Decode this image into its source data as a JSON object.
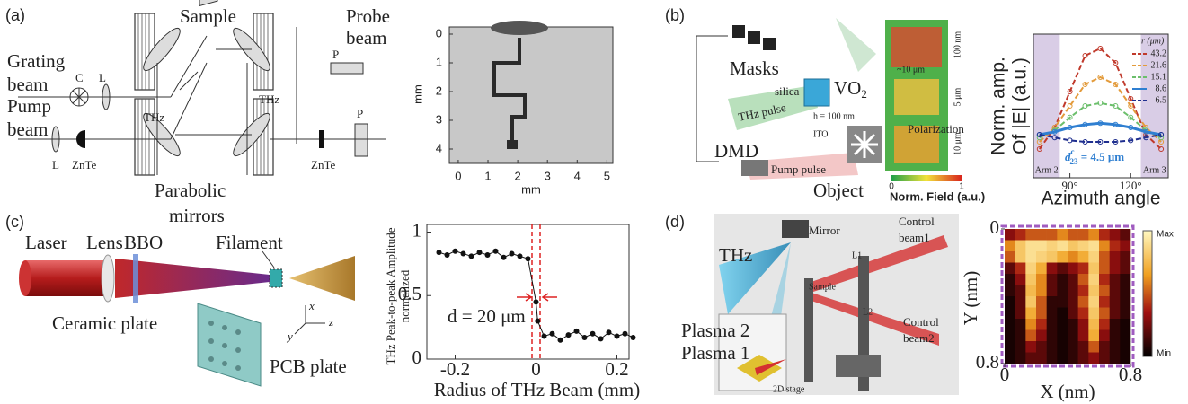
{
  "panel_a": {
    "label": "(a)",
    "sample": "Sample",
    "probe_beam": [
      "Probe",
      "beam"
    ],
    "grating_beam": [
      "Grating",
      "beam"
    ],
    "c": "C",
    "l1": "L",
    "pump_beam": [
      "Pump",
      "beam"
    ],
    "thz1": "THz",
    "thz2": "THz",
    "p1": "P",
    "p2": "P",
    "l2": "L",
    "znte1": "ZnTe",
    "znte2": "ZnTe",
    "parabolic_mirrors": [
      "Parabolic",
      "mirrors"
    ],
    "image": {
      "xlabel": "mm",
      "ylabel": "mm",
      "xlim": [
        -0.3,
        5.2
      ],
      "ylim": [
        -0.25,
        4.5
      ],
      "xticks": [
        0,
        1,
        2,
        3,
        4,
        5
      ],
      "yticks": [
        0,
        1,
        2,
        3,
        4
      ]
    }
  },
  "panel_b": {
    "label": "(b)",
    "masks": "Masks",
    "silica": "silica",
    "vo2": {
      "base": "VO",
      "sub": "2"
    },
    "thz_pulse": "THz pulse",
    "dmd": "DMD",
    "pump_pulse": "Pump pulse",
    "object": "Object",
    "h": "h = 100 nm",
    "ito": "ITO",
    "polarization": "Polarization",
    "map_scale": "~10 μm",
    "map_labels": [
      "100 nm",
      "5 μm",
      "10 μm"
    ],
    "field_colorbar": {
      "label": "Norm. Field (a.u.)",
      "ticks": [
        0,
        1
      ]
    },
    "chart": {
      "type": "line",
      "xlabel": "Azimuth angle",
      "ylabel": [
        "Norm. amp.",
        "Of |E| (a.u.)"
      ],
      "xlim": [
        72,
        138.5
      ],
      "ylim": [
        0,
        1
      ],
      "xticks": [
        {
          "value": 90,
          "label": "90°"
        },
        {
          "value": 120,
          "label": "120°"
        }
      ],
      "shaded": [
        {
          "range": [
            72,
            85
          ],
          "label": "Arm 2"
        },
        {
          "range": [
            125,
            138.5
          ],
          "label": "Arm 3"
        }
      ],
      "annotation": {
        "text": "d",
        "sup": "c",
        "sub": "23",
        "rest": " = 4.5 μm"
      },
      "legend_title": "r (μm)",
      "x": [
        75,
        82.5,
        90,
        97.5,
        105,
        112.5,
        120,
        127.5,
        135
      ],
      "series": [
        {
          "name": "43.2",
          "color": "#c0392b",
          "style": "dashed",
          "values": [
            0.2,
            0.35,
            0.6,
            0.85,
            0.9,
            0.8,
            0.55,
            0.3,
            0.2
          ]
        },
        {
          "name": "21.6",
          "color": "#e39b3b",
          "style": "dashed",
          "values": [
            0.25,
            0.35,
            0.5,
            0.65,
            0.7,
            0.65,
            0.5,
            0.35,
            0.25
          ]
        },
        {
          "name": "15.1",
          "color": "#6cbf6c",
          "style": "dashed",
          "values": [
            0.28,
            0.33,
            0.42,
            0.5,
            0.52,
            0.5,
            0.42,
            0.33,
            0.28
          ]
        },
        {
          "name": "8.6",
          "color": "#2f7fd1",
          "style": "solid",
          "values": [
            0.3,
            0.32,
            0.35,
            0.37,
            0.38,
            0.37,
            0.35,
            0.32,
            0.3
          ]
        },
        {
          "name": "6.5",
          "color": "#1f2f8f",
          "style": "dashed",
          "values": [
            0.3,
            0.28,
            0.26,
            0.25,
            0.25,
            0.25,
            0.26,
            0.28,
            0.3
          ]
        }
      ]
    }
  },
  "panel_c": {
    "label": "(c)",
    "laser": "Laser",
    "lens": "Lens",
    "bbo": "BBO",
    "filament": "Filament",
    "ceramic_plate": "Ceramic plate",
    "pcb_plate": "PCB plate",
    "axis_x": "x",
    "axis_y": "y",
    "axis_z": "z",
    "chart": {
      "type": "scatter",
      "xlabel": "Radius of THz Beam (mm)",
      "ylabel": [
        "THz Peak-to-peak Amplitude",
        "normalized"
      ],
      "xlim": [
        -0.27,
        0.23
      ],
      "ylim": [
        0,
        1.06
      ],
      "xticks": [
        -0.2,
        0,
        0.2
      ],
      "yticks": [
        0,
        0.5,
        1
      ],
      "dashed_x": [
        -0.01,
        0.01
      ],
      "annotation": "d = 20 μm",
      "color": "#111111",
      "x": [
        -0.24,
        -0.22,
        -0.2,
        -0.18,
        -0.16,
        -0.14,
        -0.12,
        -0.1,
        -0.08,
        -0.06,
        -0.04,
        -0.02,
        0,
        0.004,
        0.02,
        0.04,
        0.06,
        0.08,
        0.1,
        0.12,
        0.14,
        0.16,
        0.18,
        0.2,
        0.22,
        0.24
      ],
      "values": [
        0.84,
        0.82,
        0.85,
        0.83,
        0.81,
        0.84,
        0.82,
        0.85,
        0.8,
        0.83,
        0.81,
        0.79,
        0.45,
        0.3,
        0.18,
        0.2,
        0.15,
        0.19,
        0.22,
        0.17,
        0.2,
        0.16,
        0.21,
        0.18,
        0.2,
        0.17
      ]
    }
  },
  "panel_d": {
    "label": "(d)",
    "mirror": "Mirror",
    "control_beam1": [
      "Control",
      "beam1"
    ],
    "thz": "THz",
    "sample": "Sample",
    "control_beam2": [
      "Control",
      "beam2"
    ],
    "plasma2": "Plasma 2",
    "plasma1": "Plasma 1",
    "stage": "2D stage",
    "l1": "L1",
    "l2": "L2",
    "heatmap": {
      "type": "heatmap",
      "xlabel": "X (nm)",
      "ylabel": "Y (nm)",
      "xlim": [
        0,
        0.8
      ],
      "ylim": [
        0,
        0.8
      ],
      "xticks": [
        0,
        0.8
      ],
      "yticks": [
        0,
        0.8
      ],
      "colorbar": [
        "Max",
        "Min"
      ],
      "values": [
        [
          0.3,
          0.4,
          0.5,
          0.5,
          0.5,
          0.6,
          0.5,
          0.5,
          0.6,
          0.4,
          0.3,
          0.2
        ],
        [
          0.6,
          0.8,
          0.9,
          0.9,
          0.85,
          0.9,
          0.8,
          0.85,
          0.9,
          0.6,
          0.4,
          0.3
        ],
        [
          0.5,
          0.8,
          0.9,
          0.85,
          0.8,
          0.7,
          0.6,
          0.7,
          0.85,
          0.5,
          0.3,
          0.2
        ],
        [
          0.2,
          0.4,
          0.85,
          0.7,
          0.3,
          0.2,
          0.3,
          0.4,
          0.8,
          0.5,
          0.3,
          0.2
        ],
        [
          0.1,
          0.3,
          0.8,
          0.6,
          0.2,
          0.1,
          0.2,
          0.5,
          0.85,
          0.4,
          0.2,
          0.1
        ],
        [
          0.1,
          0.2,
          0.75,
          0.6,
          0.2,
          0.1,
          0.2,
          0.4,
          0.8,
          0.5,
          0.2,
          0.1
        ],
        [
          0.05,
          0.2,
          0.8,
          0.5,
          0.1,
          0.1,
          0.2,
          0.5,
          0.85,
          0.4,
          0.2,
          0.1
        ],
        [
          0.05,
          0.2,
          0.7,
          0.5,
          0.1,
          0.05,
          0.2,
          0.4,
          0.8,
          0.5,
          0.2,
          0.1
        ],
        [
          0.05,
          0.1,
          0.6,
          0.4,
          0.1,
          0.05,
          0.1,
          0.3,
          0.75,
          0.4,
          0.1,
          0.05
        ],
        [
          0.05,
          0.1,
          0.5,
          0.3,
          0.1,
          0.05,
          0.1,
          0.3,
          0.7,
          0.3,
          0.1,
          0.05
        ],
        [
          0.05,
          0.1,
          0.3,
          0.2,
          0.1,
          0.05,
          0.1,
          0.2,
          0.5,
          0.2,
          0.1,
          0.05
        ],
        [
          0.05,
          0.1,
          0.2,
          0.2,
          0.1,
          0.05,
          0.1,
          0.2,
          0.3,
          0.2,
          0.1,
          0.05
        ]
      ]
    }
  }
}
